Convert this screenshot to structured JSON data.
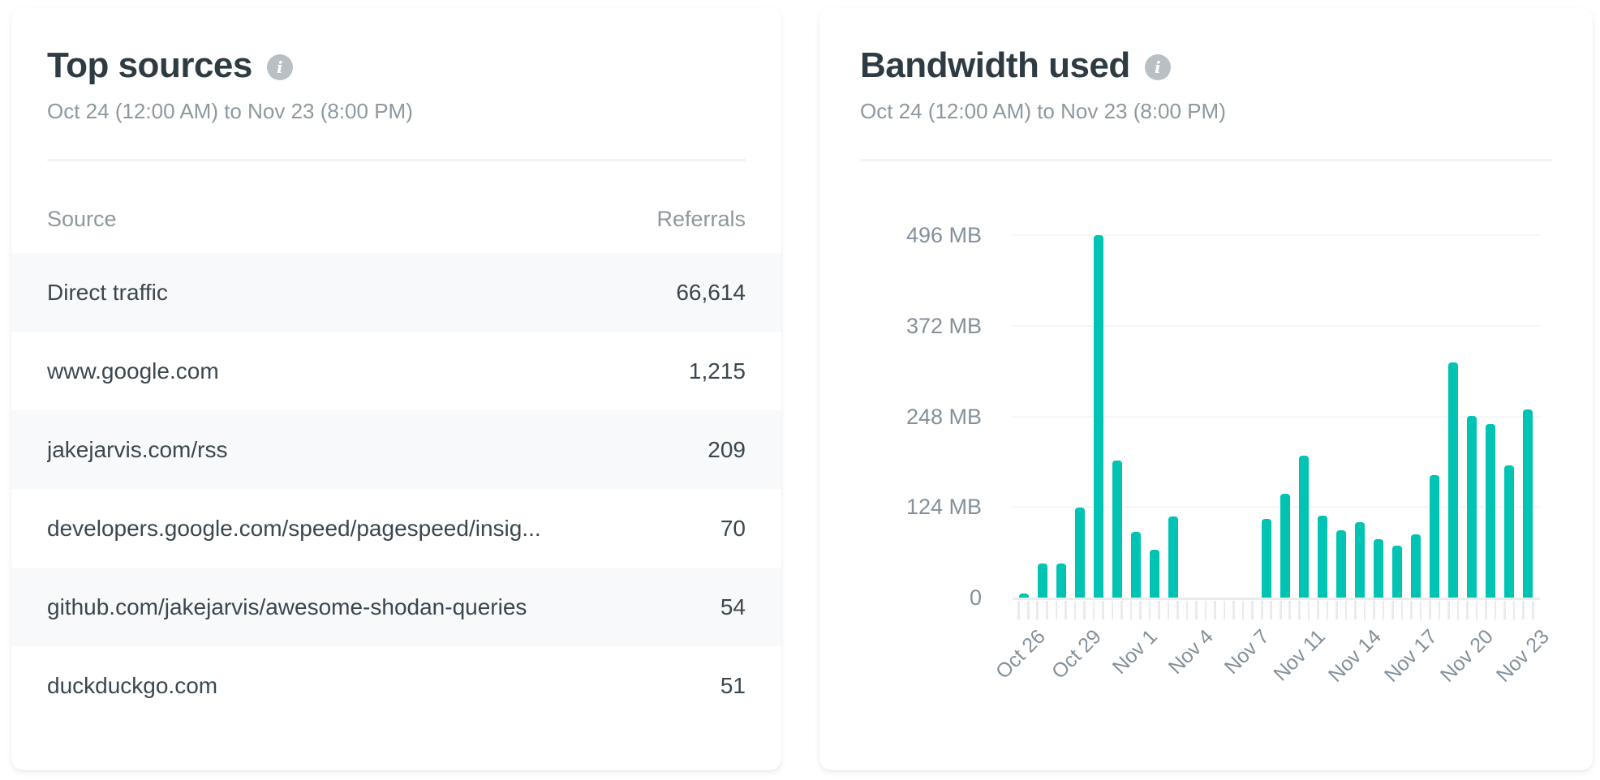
{
  "top_sources": {
    "title": "Top sources",
    "info_icon_glyph": "i",
    "date_range": "Oct 24 (12:00 AM) to Nov 23 (8:00 PM)",
    "columns": [
      "Source",
      "Referrals"
    ],
    "rows": [
      {
        "source": "Direct traffic",
        "referrals": "66,614"
      },
      {
        "source": "www.google.com",
        "referrals": "1,215"
      },
      {
        "source": "jakejarvis.com/rss",
        "referrals": "209"
      },
      {
        "source": "developers.google.com/speed/pagespeed/insig...",
        "referrals": "70"
      },
      {
        "source": "github.com/jakejarvis/awesome-shodan-queries",
        "referrals": "54"
      },
      {
        "source": "duckduckgo.com",
        "referrals": "51"
      }
    ]
  },
  "bandwidth": {
    "title": "Bandwidth used",
    "info_icon_glyph": "i",
    "date_range": "Oct 24 (12:00 AM) to Nov 23 (8:00 PM)"
  },
  "chart_data": {
    "type": "bar",
    "title": "Bandwidth used",
    "unit": "MB",
    "ylim": [
      0,
      496
    ],
    "yticks": [
      {
        "value": 0,
        "label": "0"
      },
      {
        "value": 124,
        "label": "124 MB"
      },
      {
        "value": 248,
        "label": "248 MB"
      },
      {
        "value": 372,
        "label": "372 MB"
      },
      {
        "value": 496,
        "label": "496 MB"
      }
    ],
    "values_mb": [
      5,
      47,
      47,
      123,
      496,
      187,
      90,
      65,
      111,
      0,
      0,
      0,
      0,
      108,
      142,
      194,
      112,
      92,
      103,
      80,
      71,
      87,
      167,
      322,
      249,
      237,
      181,
      257
    ],
    "x_tick_labels": [
      {
        "slot": 0,
        "label": "Oct 26"
      },
      {
        "slot": 3,
        "label": "Oct 29"
      },
      {
        "slot": 6,
        "label": "Nov 1"
      },
      {
        "slot": 9,
        "label": "Nov 4"
      },
      {
        "slot": 12,
        "label": "Nov 7"
      },
      {
        "slot": 15,
        "label": "Nov 11"
      },
      {
        "slot": 18,
        "label": "Nov 14"
      },
      {
        "slot": 21,
        "label": "Nov 17"
      },
      {
        "slot": 24,
        "label": "Nov 20"
      },
      {
        "slot": 27,
        "label": "Nov 23"
      }
    ],
    "grid": true,
    "legend": false,
    "bar_color": "#00c4b3"
  },
  "colors": {
    "accent_teal": "#00c4b3",
    "title_text": "#2f3b43",
    "muted_text": "#8e989d",
    "axis_text": "#84909a",
    "row_alt_bg": "#f8f9fa",
    "gridline": "#f4f6f7",
    "axis_line": "#e9ebec"
  }
}
